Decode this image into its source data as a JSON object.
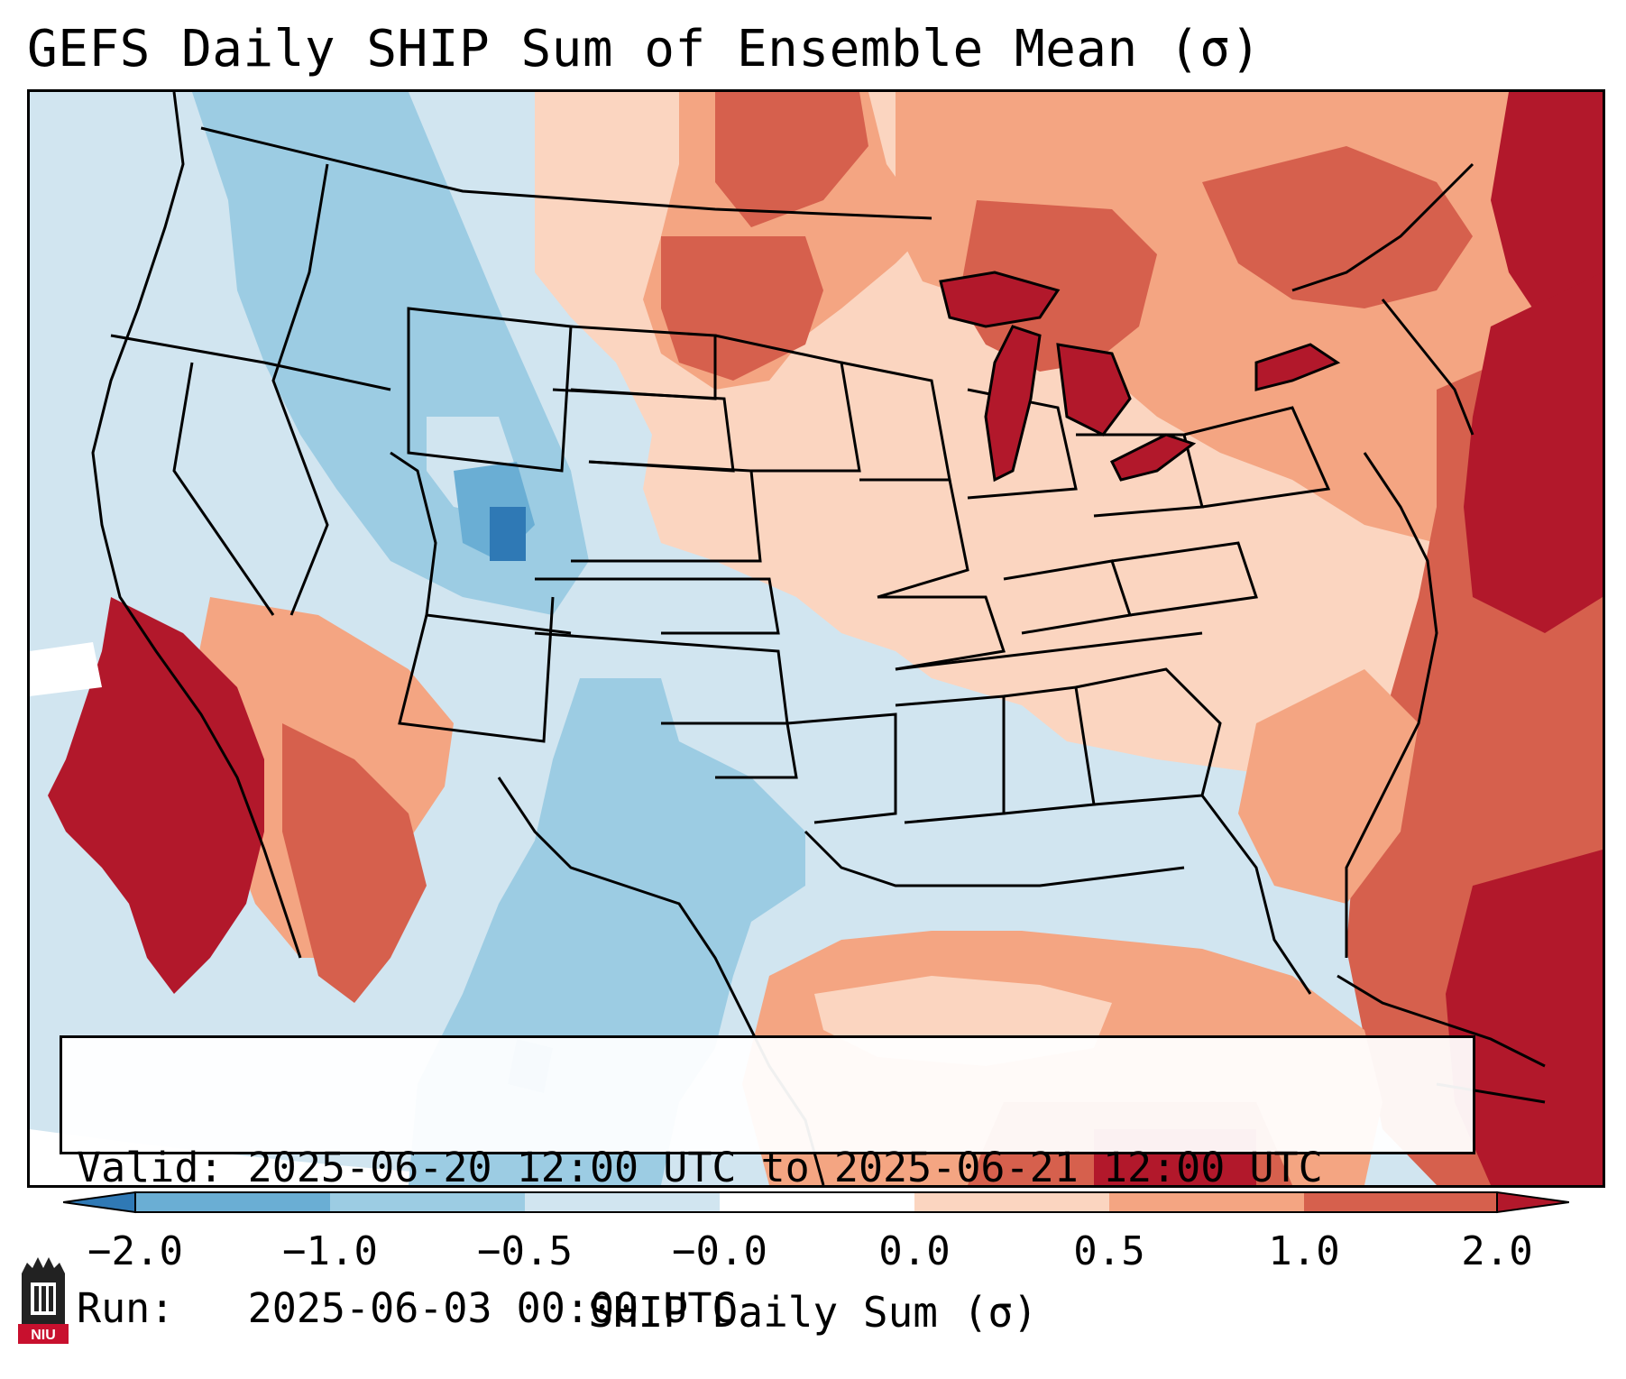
{
  "title": "GEFS Daily SHIP Sum of Ensemble Mean (σ)",
  "info": {
    "valid_label": "Valid:",
    "valid_value": "2025-06-20 12:00 UTC to 2025-06-21 12:00 UTC",
    "run_label": "Run:",
    "run_value": "2025-06-03 00:00 UTC"
  },
  "colorbar": {
    "label": "SHIP Daily Sum (σ)",
    "ticks": [
      "−2.0",
      "−1.0",
      "−0.5",
      "−0.0",
      "0.0",
      "0.5",
      "1.0",
      "2.0"
    ],
    "colors": [
      "#2f79b5",
      "#6aaed4",
      "#9ccce3",
      "#d1e5f0",
      "#ffffff",
      "#fbd5c0",
      "#f4a582",
      "#d6604d",
      "#b2182b"
    ]
  },
  "logo": {
    "text": "NIU",
    "color": "#c8102e"
  }
}
